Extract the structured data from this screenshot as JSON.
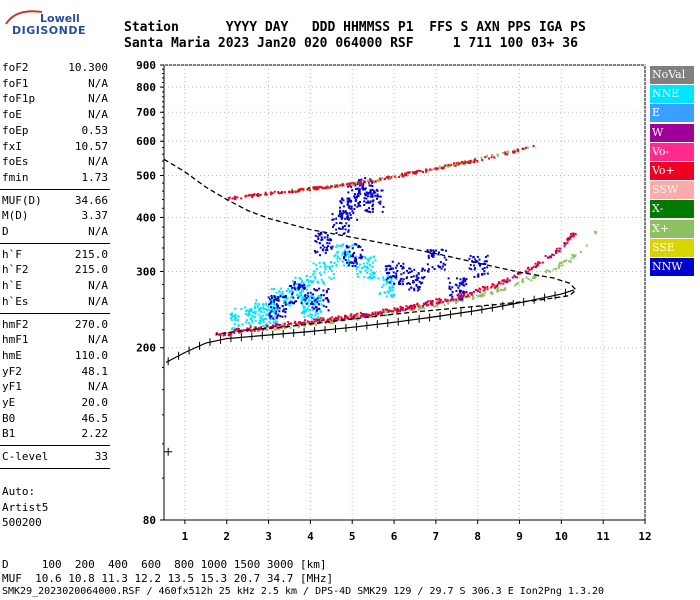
{
  "logo": {
    "top": "Lowell",
    "main": "DIGISONDE"
  },
  "header": {
    "row1": "Station      YYYY DAY   DDD HHMMSS P1  FFS S AXN PPS IGA PS",
    "row2": "Santa Maria 2023 Jan20 020 064000 RSF     1 711 100 03+ 36"
  },
  "params": [
    {
      "group": [
        {
          "name": "foF2",
          "value": "10.300"
        },
        {
          "name": "foF1",
          "value": "N/A"
        },
        {
          "name": "foF1p",
          "value": "N/A"
        },
        {
          "name": "foE",
          "value": "N/A"
        },
        {
          "name": "foEp",
          "value": "0.53"
        },
        {
          "name": "fxI",
          "value": "10.57"
        },
        {
          "name": "foEs",
          "value": "N/A"
        },
        {
          "name": "fmin",
          "value": "1.73"
        }
      ]
    },
    {
      "group": [
        {
          "name": "MUF(D)",
          "value": "34.66"
        },
        {
          "name": "M(D)",
          "value": "3.37"
        },
        {
          "name": "D",
          "value": "N/A"
        }
      ]
    },
    {
      "group": [
        {
          "name": "h`F",
          "value": "215.0"
        },
        {
          "name": "h`F2",
          "value": "215.0"
        },
        {
          "name": "h`E",
          "value": "N/A"
        },
        {
          "name": "h`Es",
          "value": "N/A"
        }
      ]
    },
    {
      "group": [
        {
          "name": "hmF2",
          "value": "270.0"
        },
        {
          "name": "hmF1",
          "value": "N/A"
        },
        {
          "name": "hmE",
          "value": "110.0"
        },
        {
          "name": "yF2",
          "value": "48.1"
        },
        {
          "name": "yF1",
          "value": "N/A"
        },
        {
          "name": "yE",
          "value": "20.0"
        },
        {
          "name": "B0",
          "value": "46.5"
        },
        {
          "name": "B1",
          "value": "2.22"
        }
      ]
    },
    {
      "group": [
        {
          "name": "C-level",
          "value": "33"
        }
      ]
    }
  ],
  "auto": {
    "line1": "Auto:",
    "line2": "Artist5",
    "line3": "500200"
  },
  "legend": [
    {
      "label": "NoVal",
      "bg": "#808080",
      "fg": "#ffffff"
    },
    {
      "label": "NNE",
      "bg": "#00e5ff",
      "fg": "#ffffff"
    },
    {
      "label": "E",
      "bg": "#3aa0ff",
      "fg": "#ffffff"
    },
    {
      "label": "W",
      "bg": "#a0009a",
      "fg": "#ffffff"
    },
    {
      "label": "Vo-",
      "bg": "#ff2a8c",
      "fg": "#ffffff"
    },
    {
      "label": "Vo+",
      "bg": "#ee0020",
      "fg": "#ffffff"
    },
    {
      "label": "SSW",
      "bg": "#ffaaaa",
      "fg": "#ffffff"
    },
    {
      "label": "X-",
      "bg": "#007a00",
      "fg": "#ffffff"
    },
    {
      "label": "X+",
      "bg": "#8cc060",
      "fg": "#ffffff"
    },
    {
      "label": "SSE",
      "bg": "#d8d400",
      "fg": "#ffffff"
    },
    {
      "label": "NNW",
      "bg": "#0000d0",
      "fg": "#ffffff"
    }
  ],
  "footer": {
    "line1": "D     100  200  400  600  800 1000 1500 3000 [km]",
    "line2": "MUF  10.6 10.8 11.3 12.2 13.5 15.3 20.7 34.7 [MHz]",
    "line3": "SMK29_2023020064000.RSF / 460fx512h 25 kHz 2.5 km / DPS-4D SMK29 129 / 29.7 S 306.3 E Ion2Png 1.3.20"
  },
  "chart_data": {
    "type": "scatter",
    "xlim": [
      0.5,
      12
    ],
    "ylim": [
      80,
      900
    ],
    "y_scale": "log",
    "x_ticks": [
      "1",
      "2",
      "3",
      "4",
      "5",
      "6",
      "7",
      "8",
      "9",
      "10",
      "11",
      "12"
    ],
    "y_ticks": [
      "900",
      "800",
      "700",
      "600",
      "500",
      "400",
      "300",
      "200",
      "80"
    ],
    "y_tick_values": [
      900,
      800,
      700,
      600,
      500,
      400,
      300,
      200,
      80
    ],
    "grid": "dotted",
    "legend_position": "right",
    "traces": {
      "o_lower": [
        [
          1.75,
          215
        ],
        [
          2.5,
          222
        ],
        [
          3.5,
          228
        ],
        [
          4.5,
          234
        ],
        [
          5.5,
          241
        ],
        [
          6.5,
          251
        ],
        [
          7.5,
          263
        ],
        [
          8.5,
          282
        ],
        [
          9.3,
          308
        ],
        [
          9.8,
          332
        ],
        [
          10.1,
          352
        ],
        [
          10.3,
          372
        ]
      ],
      "x_lower": [
        [
          2.3,
          220
        ],
        [
          3.5,
          226
        ],
        [
          4.5,
          232
        ],
        [
          5.5,
          239
        ],
        [
          6.5,
          248
        ],
        [
          7.5,
          258
        ],
        [
          8.5,
          274
        ],
        [
          9.5,
          297
        ],
        [
          10.2,
          322
        ],
        [
          10.6,
          348
        ],
        [
          10.8,
          370
        ]
      ],
      "o_upper": [
        [
          2.0,
          445
        ],
        [
          3,
          456
        ],
        [
          4,
          468
        ],
        [
          5,
          480
        ],
        [
          6,
          500
        ],
        [
          7,
          522
        ],
        [
          8,
          546
        ],
        [
          9,
          576
        ],
        [
          9.3,
          590
        ]
      ],
      "x_upper": [
        [
          3.5,
          462
        ],
        [
          4.5,
          474
        ],
        [
          5.5,
          488
        ],
        [
          6.5,
          510
        ],
        [
          7.5,
          535
        ],
        [
          8.5,
          562
        ],
        [
          9.2,
          580
        ]
      ],
      "blue_cluster": [
        [
          4.7,
          390
        ],
        [
          4.9,
          420
        ],
        [
          5.1,
          455
        ],
        [
          5.3,
          470
        ],
        [
          5.5,
          440
        ],
        [
          4.3,
          350
        ],
        [
          5.0,
          330
        ],
        [
          6.0,
          300
        ],
        [
          6.5,
          290
        ],
        [
          7.5,
          275
        ],
        [
          8.0,
          310
        ],
        [
          7.0,
          320
        ],
        [
          3.2,
          250
        ],
        [
          3.7,
          270
        ],
        [
          4.2,
          260
        ]
      ],
      "cyan_cluster": [
        [
          2.3,
          235
        ],
        [
          2.8,
          245
        ],
        [
          3.3,
          260
        ],
        [
          3.8,
          280
        ],
        [
          4.3,
          300
        ],
        [
          4.8,
          330
        ],
        [
          5.3,
          310
        ],
        [
          5.8,
          280
        ],
        [
          4.0,
          250
        ],
        [
          3.0,
          240
        ]
      ]
    },
    "profile_dashed": [
      [
        0.5,
        545
      ],
      [
        1.0,
        510
      ],
      [
        1.5,
        470
      ],
      [
        2,
        440
      ],
      [
        2.5,
        415
      ],
      [
        3,
        398
      ],
      [
        4,
        375
      ],
      [
        5,
        360
      ],
      [
        6,
        345
      ],
      [
        7,
        330
      ],
      [
        8,
        314
      ],
      [
        9,
        299
      ],
      [
        9.8,
        290
      ],
      [
        10.2,
        282
      ],
      [
        10.35,
        272
      ],
      [
        10.2,
        264
      ],
      [
        9.5,
        258
      ],
      [
        8.5,
        252
      ],
      [
        7.5,
        247
      ],
      [
        6.5,
        242
      ],
      [
        5.5,
        236
      ],
      [
        4.5,
        230
      ],
      [
        3.5,
        224
      ],
      [
        2.5,
        220
      ],
      [
        1.75,
        215
      ]
    ],
    "profile_marked": [
      [
        0.55,
        185
      ],
      [
        1,
        195
      ],
      [
        1.5,
        205
      ],
      [
        2,
        210
      ],
      [
        3,
        214
      ],
      [
        4,
        218
      ],
      [
        5,
        223
      ],
      [
        6,
        229
      ],
      [
        7,
        236
      ],
      [
        8,
        244
      ],
      [
        9,
        254
      ],
      [
        10,
        266
      ],
      [
        10.3,
        272
      ]
    ],
    "cross_marker": [
      [
        0.6,
        115
      ]
    ]
  }
}
